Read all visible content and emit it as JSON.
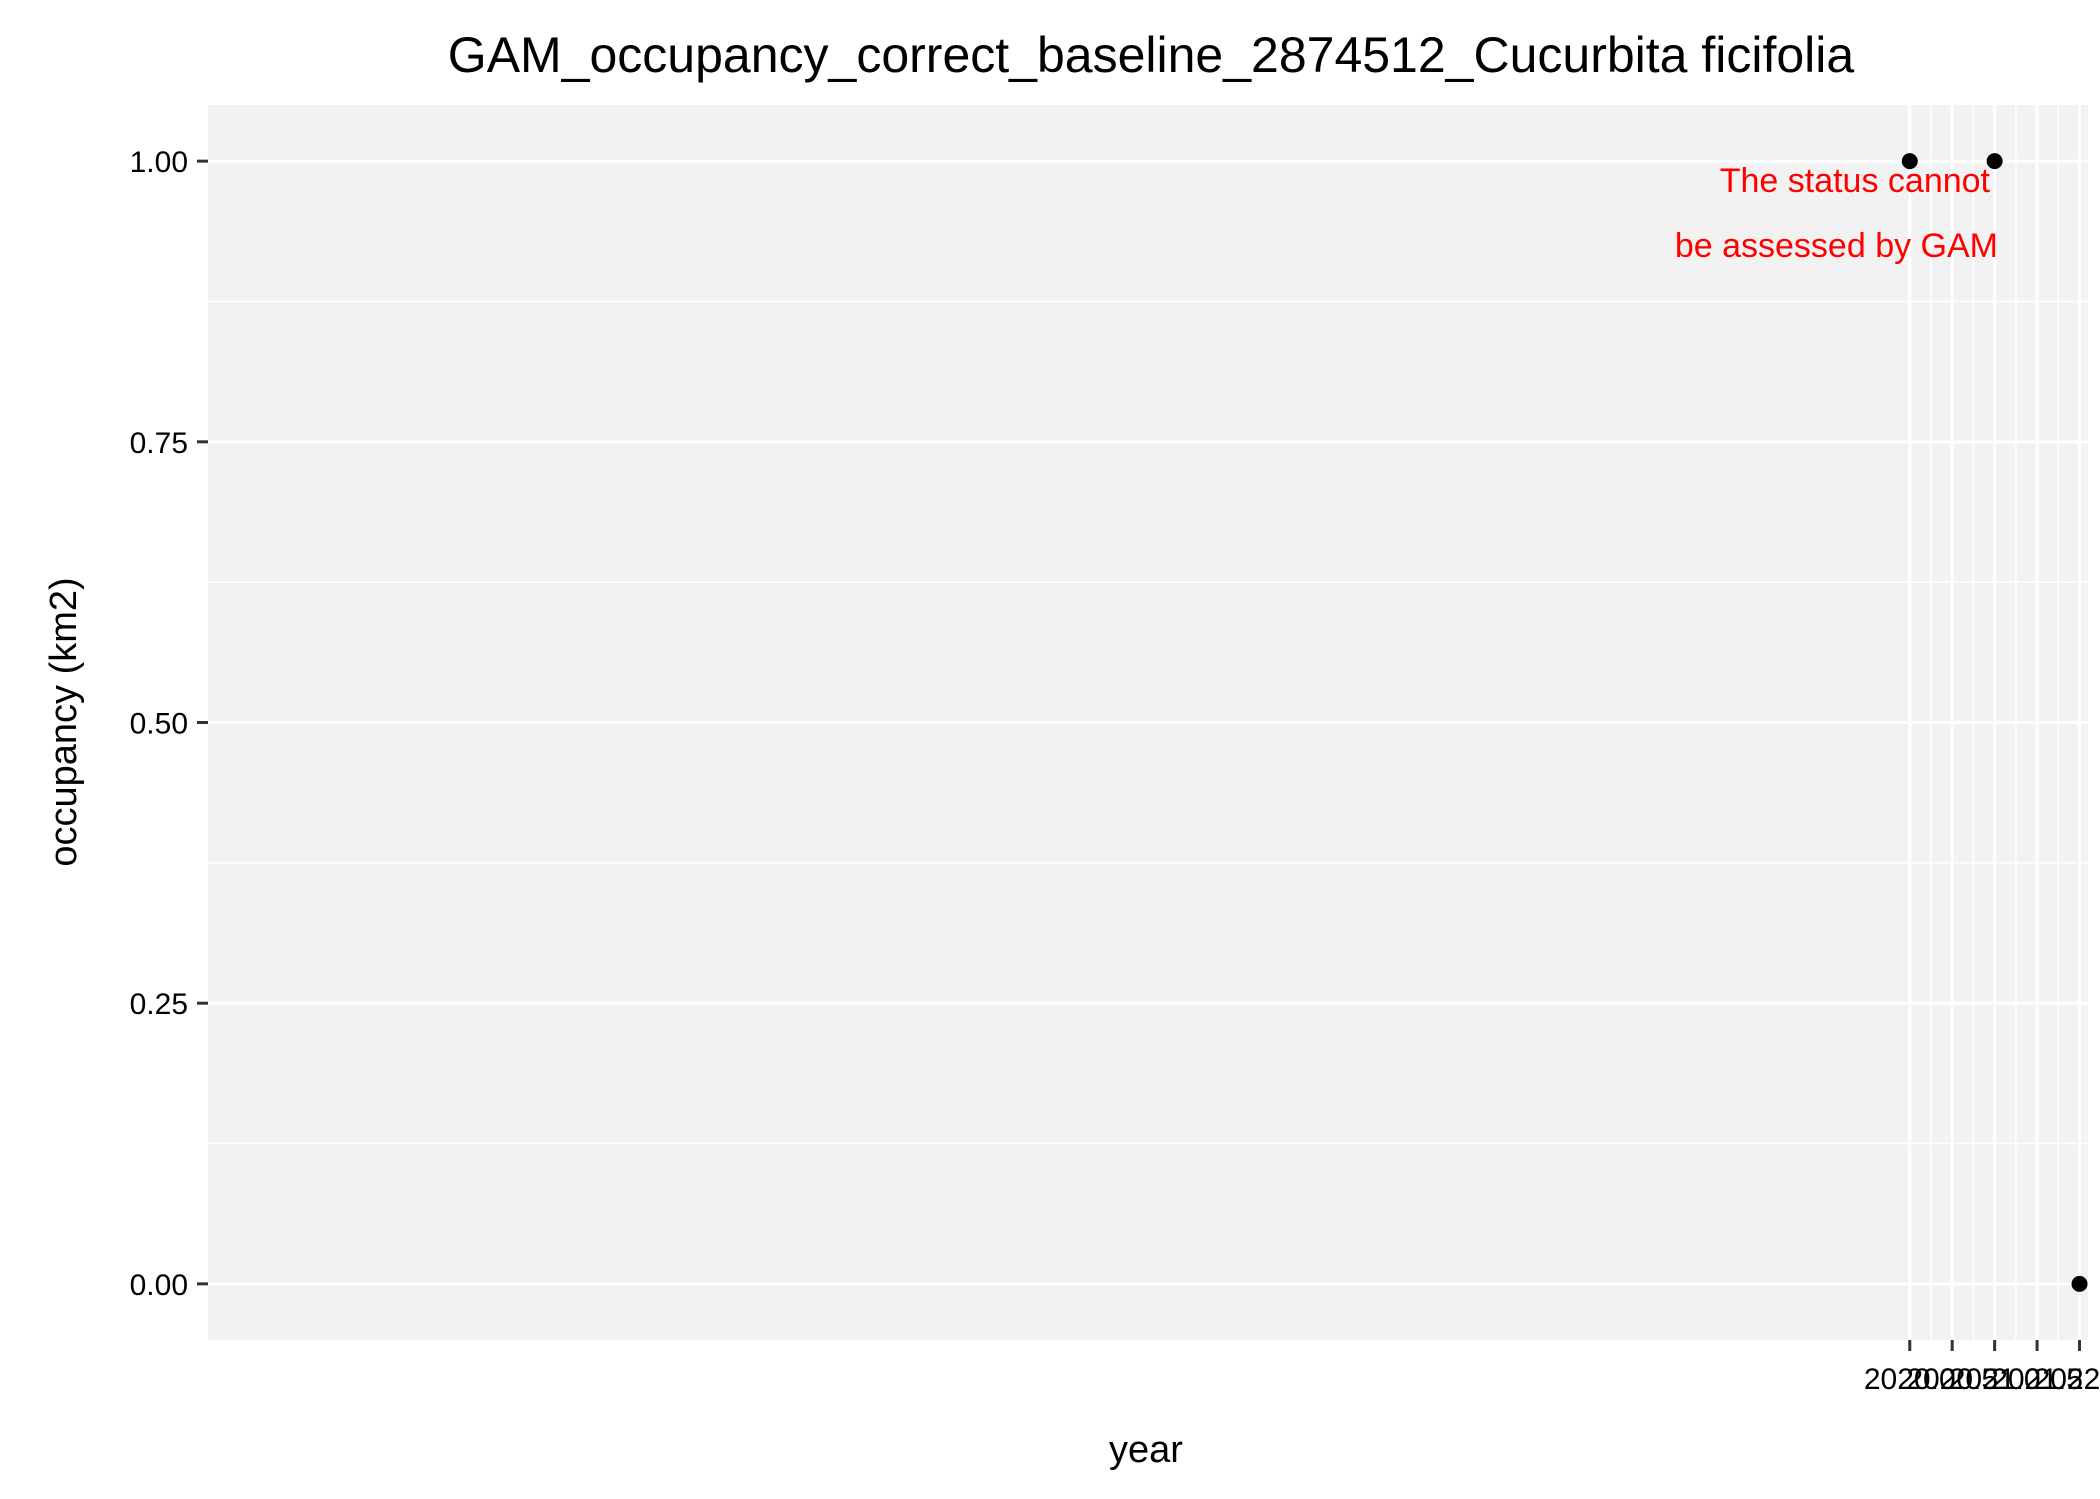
{
  "chart_data": {
    "type": "scatter",
    "title": "GAM_occupancy_correct_baseline_2874512_Cucurbita ficifolia",
    "xlabel": "year",
    "ylabel": "occupancy (km2)",
    "x_ticks": [
      "2020.0",
      "2020.5",
      "2021.0",
      "2021.5",
      "2022.0"
    ],
    "y_ticks": [
      "0.00",
      "0.25",
      "0.50",
      "0.75",
      "1.00"
    ],
    "xlim": [
      1999.95,
      2022.1
    ],
    "ylim": [
      -0.05,
      1.05
    ],
    "points": [
      {
        "x": 2020.0,
        "y": 1.0
      },
      {
        "x": 2021.0,
        "y": 1.0
      },
      {
        "x": 2022.0,
        "y": 0.0
      }
    ],
    "annotation": {
      "lines": [
        "The status cannot",
        "be assessed by GAM"
      ],
      "color": "#ff0000"
    },
    "grid": true,
    "panel_color": "#f2f2f2",
    "point_color": "#000000"
  }
}
